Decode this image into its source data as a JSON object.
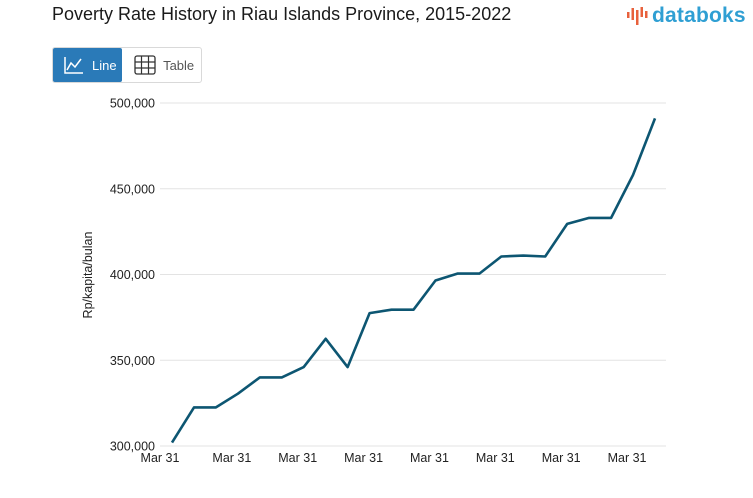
{
  "header": {
    "title": "Poverty Rate History in Riau Islands Province, 2015-2022",
    "logo_text": "databoks",
    "brand_color": "#2f9fd3"
  },
  "view_toggle": {
    "line_label": "Line",
    "table_label": "Table",
    "active": "line",
    "active_color": "#2a7ab8",
    "line_icon": "line-chart-icon",
    "table_icon": "table-grid-icon"
  },
  "chart_data": {
    "type": "line",
    "title": "Poverty Rate History in Riau Islands Province, 2015-2022",
    "xlabel": "",
    "ylabel": "Rp/kapita/bulan",
    "ylim": [
      300000,
      500000
    ],
    "yticks": [
      "300,000",
      "350,000",
      "400,000",
      "450,000",
      "500,000"
    ],
    "x_tick_labels": [
      "Mar 31",
      "Mar 31",
      "Mar 31",
      "Mar 31",
      "Mar 31",
      "Mar 31",
      "Mar 31",
      "Mar 31"
    ],
    "grid": true,
    "line_color": "#0d5672",
    "series": [
      {
        "values": [
          302000,
          322500,
          322500,
          330500,
          340000,
          340000,
          346000,
          362500,
          346000,
          377500,
          379500,
          379500,
          396500,
          400500,
          400500,
          410500,
          411000,
          410500,
          429500,
          433000,
          433000,
          458000,
          491000
        ]
      }
    ]
  }
}
